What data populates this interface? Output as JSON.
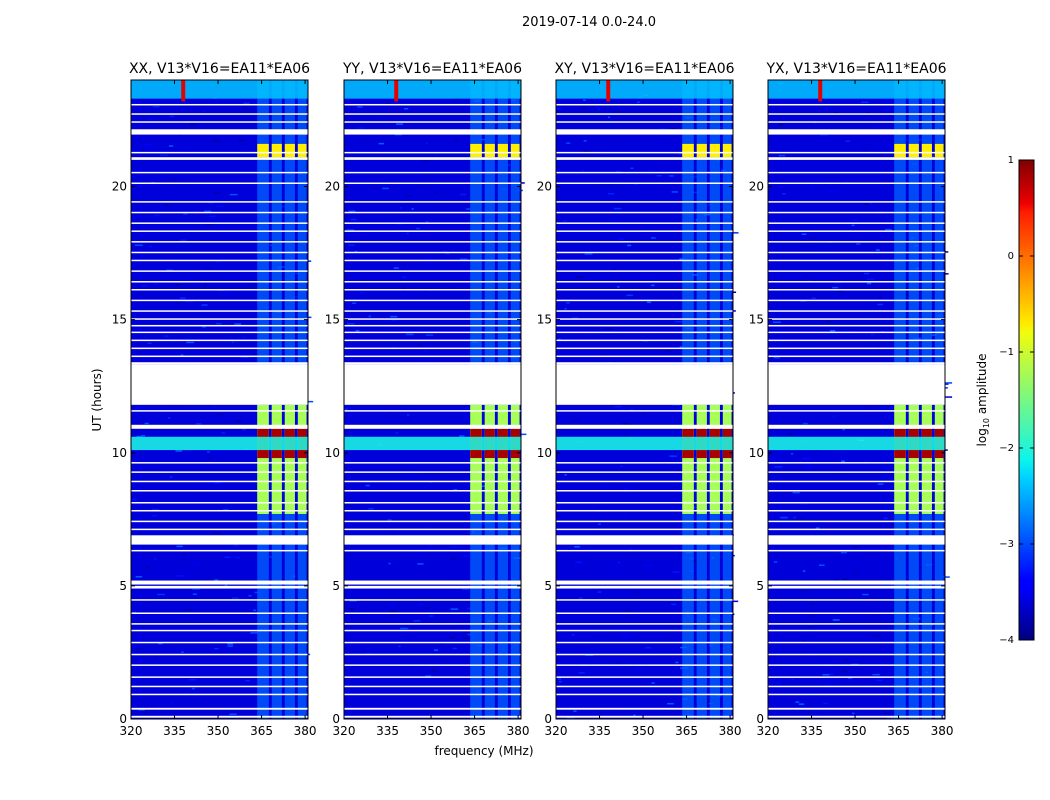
{
  "chart_data": {
    "type": "heatmap",
    "suptitle": "2019-07-14 0.0-24.0",
    "xlabel": "frequency (MHz)",
    "ylabel": "UT (hours)",
    "xlim": [
      320,
      381
    ],
    "ylim": [
      0,
      24
    ],
    "xticks": [
      320,
      335,
      350,
      365,
      380
    ],
    "yticks": [
      0,
      5,
      10,
      15,
      20
    ],
    "colorbar": {
      "label_prefix": "log",
      "label_subscript": "10",
      "label_suffix": " amplitude",
      "range": [
        -4,
        1
      ],
      "ticks": [
        {
          "value": -4,
          "label": "−4"
        },
        {
          "value": -3,
          "label": "−3"
        },
        {
          "value": -2,
          "label": "−2"
        },
        {
          "value": -1,
          "label": "−1"
        },
        {
          "value": 0,
          "label": "0"
        },
        {
          "value": 1,
          "label": "1"
        }
      ]
    },
    "panels": [
      {
        "title": "XX, V13*V16=EA11*EA06",
        "show_ylabel": true
      },
      {
        "title": "YY, V13*V16=EA11*EA06",
        "show_xlabel": true
      },
      {
        "title": "XY, V13*V16=EA11*EA06"
      },
      {
        "title": "YX, V13*V16=EA11*EA06"
      }
    ],
    "flagged_time_ranges_hours": [
      [
        0.05,
        0.12
      ],
      [
        0.35,
        0.42
      ],
      [
        0.9,
        0.95
      ],
      [
        1.2,
        1.25
      ],
      [
        1.55,
        1.6
      ],
      [
        2.0,
        2.05
      ],
      [
        2.4,
        2.45
      ],
      [
        2.85,
        2.9
      ],
      [
        3.3,
        3.35
      ],
      [
        3.55,
        3.6
      ],
      [
        3.95,
        4.0
      ],
      [
        4.45,
        4.5
      ],
      [
        4.9,
        5.0
      ],
      [
        5.05,
        5.2
      ],
      [
        6.3,
        6.35
      ],
      [
        6.55,
        6.9
      ],
      [
        7.1,
        7.15
      ],
      [
        7.4,
        7.45
      ],
      [
        7.8,
        7.85
      ],
      [
        8.1,
        8.15
      ],
      [
        8.55,
        8.6
      ],
      [
        8.9,
        8.95
      ],
      [
        9.25,
        9.3
      ],
      [
        9.6,
        9.65
      ],
      [
        10.9,
        11.05
      ],
      [
        11.55,
        11.6
      ],
      [
        11.8,
        13.3
      ],
      [
        13.3,
        13.4
      ],
      [
        13.6,
        13.65
      ],
      [
        13.9,
        13.95
      ],
      [
        14.2,
        14.25
      ],
      [
        14.5,
        14.55
      ],
      [
        14.75,
        14.8
      ],
      [
        15.0,
        15.05
      ],
      [
        15.3,
        15.35
      ],
      [
        15.7,
        15.75
      ],
      [
        16.1,
        16.15
      ],
      [
        16.4,
        16.45
      ],
      [
        16.8,
        16.85
      ],
      [
        17.2,
        17.25
      ],
      [
        17.5,
        17.55
      ],
      [
        17.9,
        17.95
      ],
      [
        18.3,
        18.35
      ],
      [
        18.6,
        18.65
      ],
      [
        19.0,
        19.05
      ],
      [
        19.4,
        19.45
      ],
      [
        20.1,
        20.15
      ],
      [
        20.5,
        20.55
      ],
      [
        21.0,
        21.1
      ],
      [
        21.25,
        21.3
      ],
      [
        21.95,
        22.15
      ],
      [
        22.4,
        22.45
      ],
      [
        22.7,
        22.75
      ],
      [
        23.05,
        23.1
      ]
    ],
    "features": [
      {
        "name": "rfi-block",
        "freq_range_mhz": [
          363.5,
          380.5
        ],
        "time_range_hours": [
          7.7,
          11.8
        ],
        "log10_amplitude": -1.3
      },
      {
        "name": "rfi-core",
        "freq_range_mhz": [
          363.5,
          380.5
        ],
        "time_range_hours": [
          9.8,
          10.9
        ],
        "log10_amplitude": 0.8
      },
      {
        "name": "rfi-evening",
        "freq_range_mhz": [
          363.5,
          380.5
        ],
        "time_range_hours": [
          21.1,
          21.6
        ],
        "log10_amplitude": -0.8
      },
      {
        "name": "broadband-band",
        "freq_range_mhz": [
          320,
          381
        ],
        "time_range_hours": [
          10.1,
          10.6
        ],
        "log10_amplitude": -2.0
      },
      {
        "name": "top-band",
        "freq_range_mhz": [
          320,
          381
        ],
        "time_range_hours": [
          23.3,
          24.0
        ],
        "log10_amplitude": -2.4
      },
      {
        "name": "rfi-spike",
        "freq_center_mhz": 338,
        "time_range_hours": [
          23.2,
          24.0
        ],
        "log10_amplitude": 0.5
      }
    ]
  }
}
